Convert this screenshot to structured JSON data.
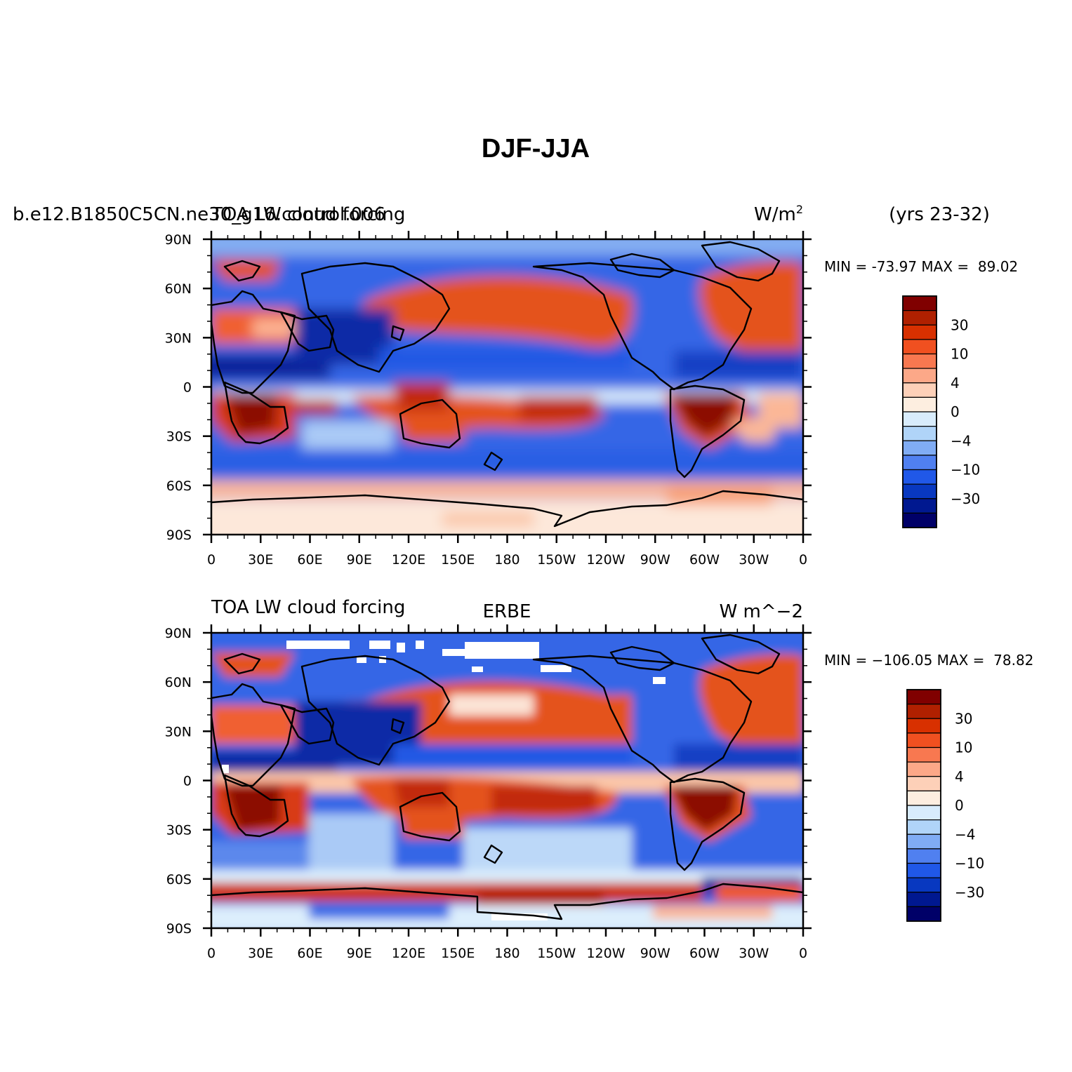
{
  "figure": {
    "title": "DJF-JJA"
  },
  "chart_data": [
    {
      "type": "heatmap",
      "subtype": "filled-contour-map",
      "left_title": "b.e12.B1850C5CN.ne30_g16.control.006",
      "center_title": "TOA LW cloud forcing",
      "right_title": "W/m",
      "right_title_sup": "2",
      "outer_right_title": "(yrs 23-32)",
      "stats_text": "MIN = -73.97 MAX =  89.02",
      "min": -73.97,
      "max": 89.02,
      "units": "W/m^2",
      "x_ticks": [
        "0",
        "30E",
        "60E",
        "90E",
        "120E",
        "150E",
        "180",
        "150W",
        "120W",
        "90W",
        "60W",
        "30W",
        "0"
      ],
      "y_ticks": [
        "90N",
        "60N",
        "30N",
        "0",
        "30S",
        "60S",
        "90S"
      ],
      "xlim": [
        0,
        360
      ],
      "ylim": [
        -90,
        90
      ],
      "contour_levels": [
        -40,
        -30,
        -20,
        -10,
        -6,
        -4,
        -2,
        0,
        2,
        4,
        6,
        10,
        20,
        30,
        40
      ],
      "colorbar_labels": [
        "30",
        "10",
        "4",
        "0",
        "−4",
        "−10",
        "−30"
      ]
    },
    {
      "type": "heatmap",
      "subtype": "filled-contour-map",
      "left_title": "TOA LW cloud forcing",
      "center_title": "ERBE",
      "right_title": "W m^−2",
      "stats_text": "MIN = −106.05 MAX =  78.82",
      "min": -106.05,
      "max": 78.82,
      "units": "W m^-2",
      "x_ticks": [
        "0",
        "30E",
        "60E",
        "90E",
        "120E",
        "150E",
        "180",
        "150W",
        "120W",
        "90W",
        "60W",
        "30W",
        "0"
      ],
      "y_ticks": [
        "90N",
        "60N",
        "30N",
        "0",
        "30S",
        "60S",
        "90S"
      ],
      "xlim": [
        0,
        360
      ],
      "ylim": [
        -90,
        90
      ],
      "contour_levels": [
        -40,
        -30,
        -20,
        -10,
        -6,
        -4,
        -2,
        0,
        2,
        4,
        6,
        10,
        20,
        30,
        40
      ],
      "colorbar_labels": [
        "30",
        "10",
        "4",
        "0",
        "−4",
        "−10",
        "−30"
      ]
    }
  ],
  "colorbar_colors": [
    "#800000",
    "#b02000",
    "#d83000",
    "#f05020",
    "#f87850",
    "#fca888",
    "#fdd0b8",
    "#fdeee0",
    "#d8ecfc",
    "#b0d4f8",
    "#80acf4",
    "#5080f0",
    "#2058e8",
    "#0838c0",
    "#001890",
    "#000068"
  ]
}
